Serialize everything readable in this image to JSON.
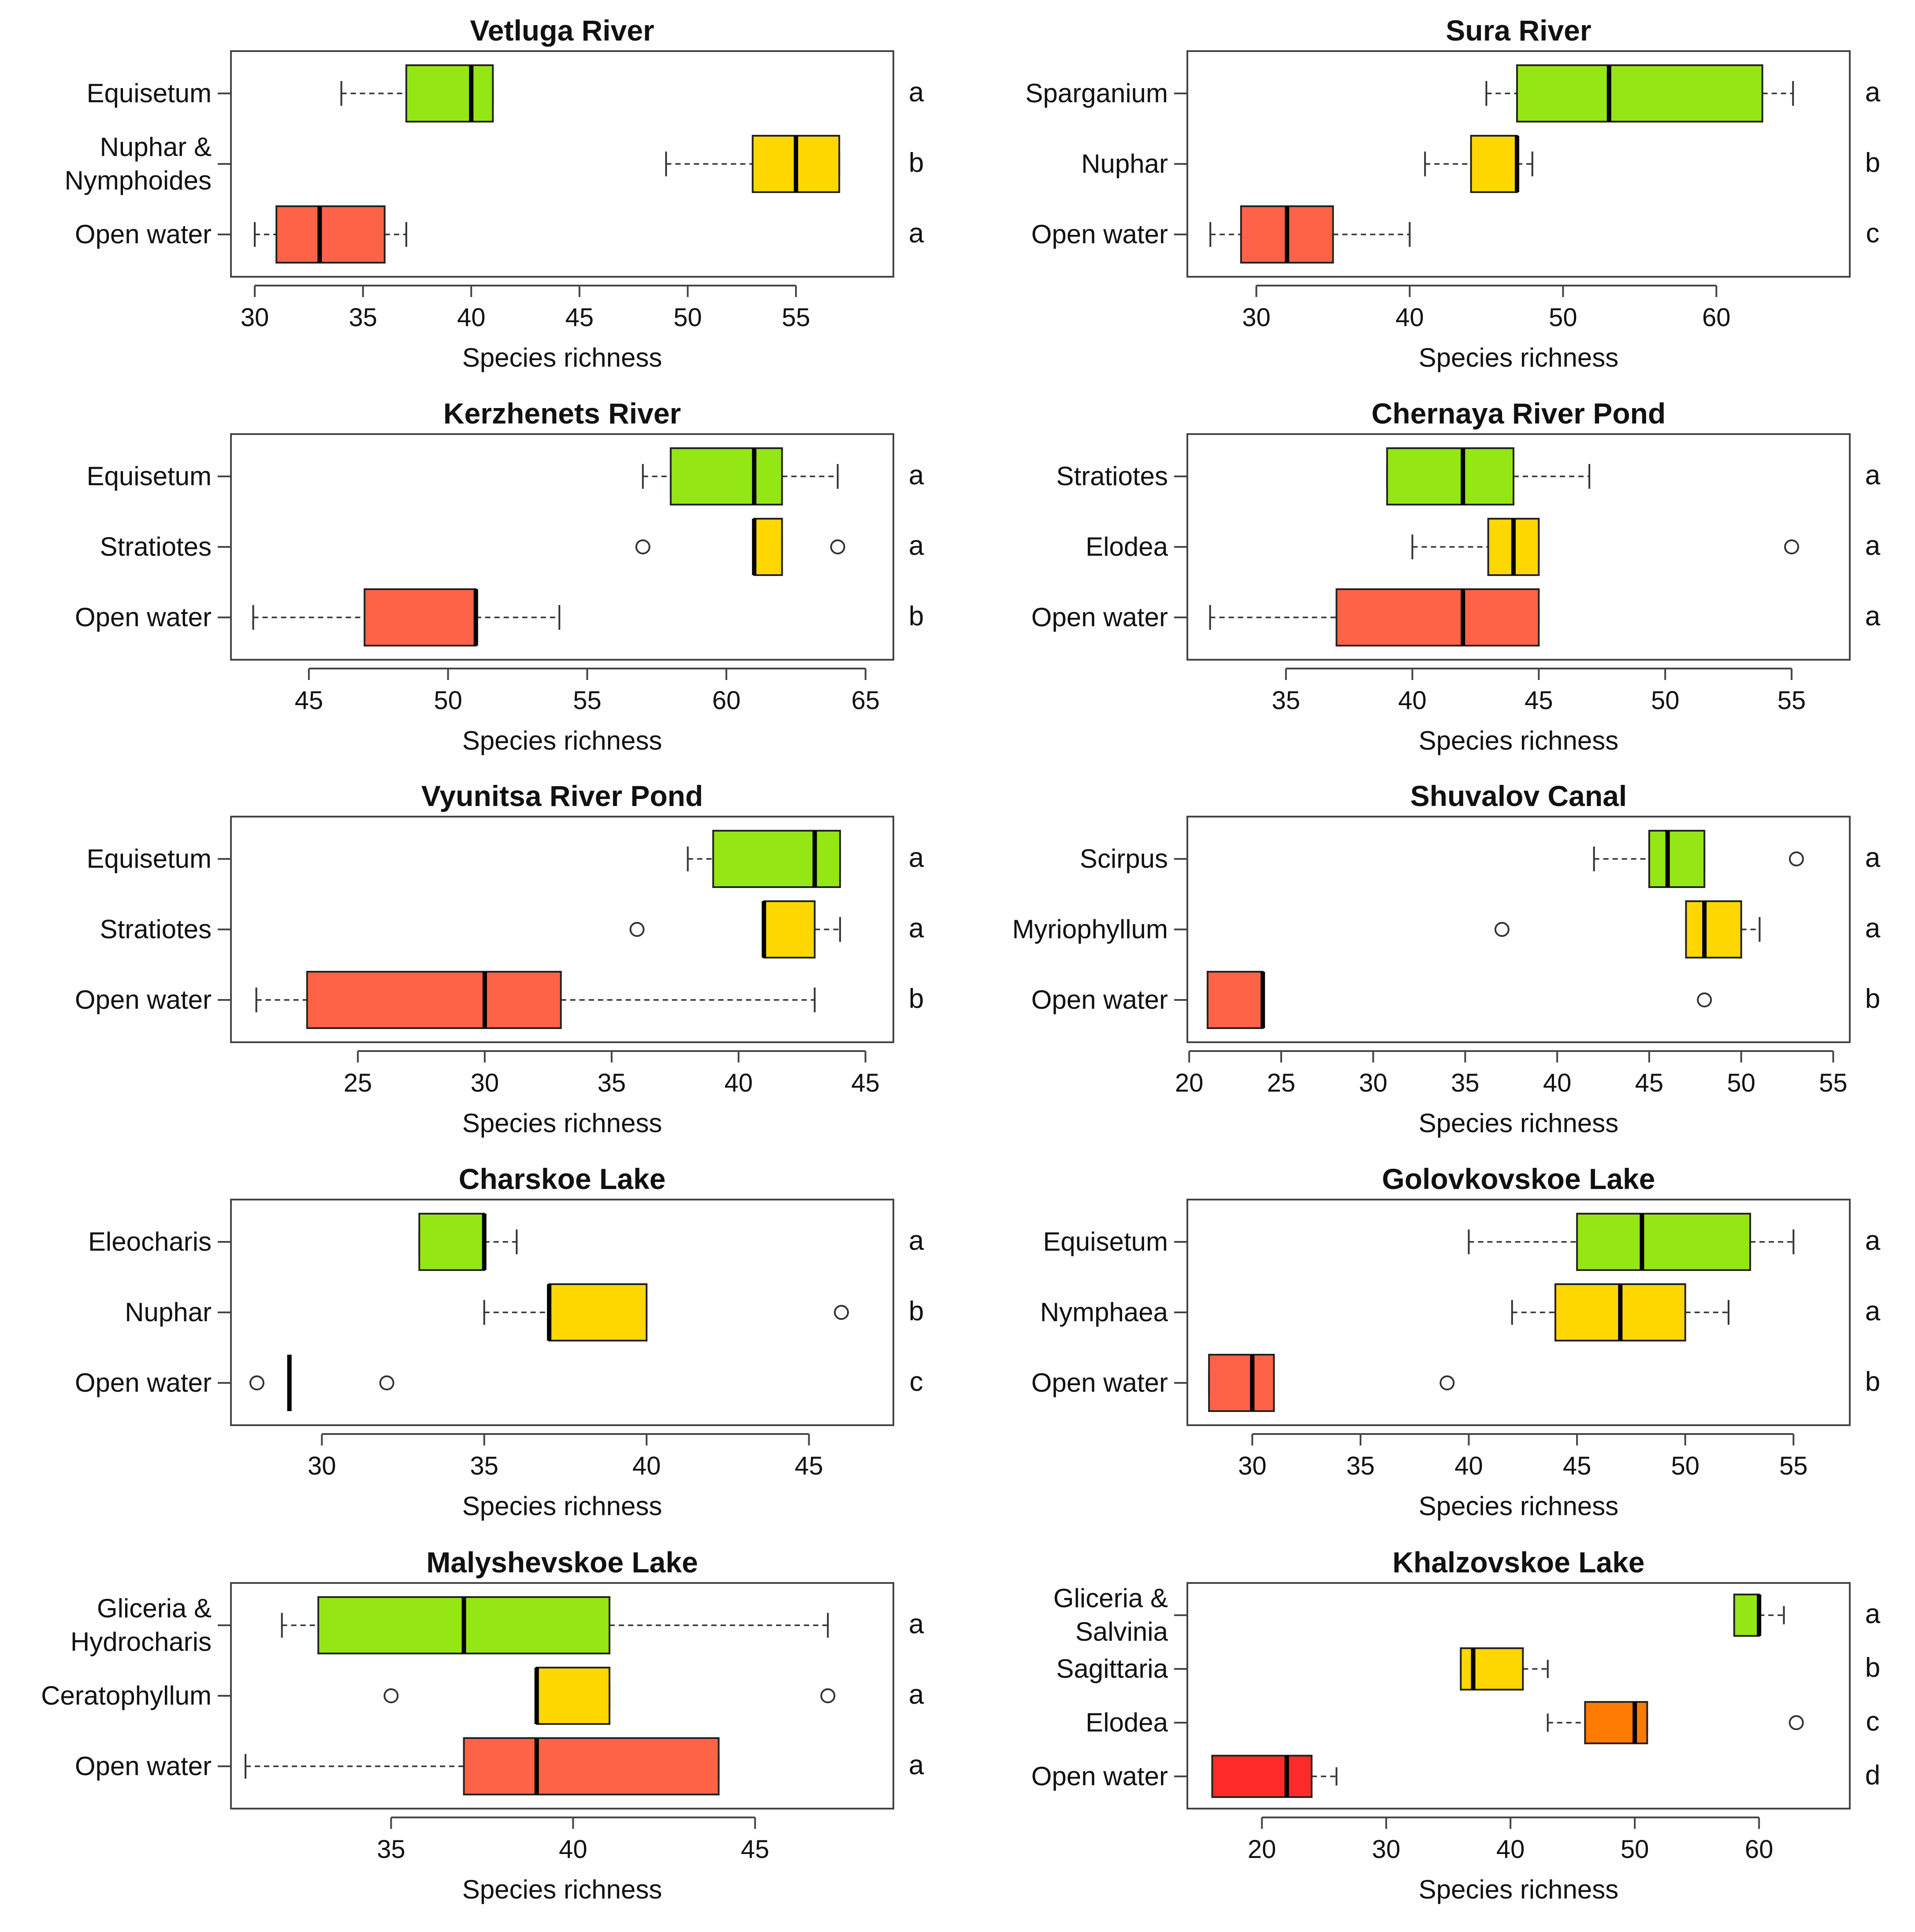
{
  "figure": {
    "xlabel_common": "Species richness",
    "colors": {
      "green": "#95e615",
      "yellow": "#ffd700",
      "red": "#ff6347",
      "orange": "#ff7a00",
      "bright_red": "#ff2a2a",
      "outline": "#222222"
    }
  },
  "chart_data": [
    {
      "type": "boxplot",
      "title": "Vetluga River",
      "xlabel": "Species richness",
      "xlim": [
        28.9,
        59.5
      ],
      "xticks": [
        30,
        35,
        40,
        45,
        50,
        55
      ],
      "groups": [
        {
          "label": [
            "Equisetum"
          ],
          "color": "green",
          "letter": "a",
          "whisker_low": 34,
          "q1": 37,
          "median": 40,
          "q3": 41,
          "whisker_high": 41,
          "outliers": []
        },
        {
          "label": [
            "Nuphar &",
            "Nymphoides"
          ],
          "color": "yellow",
          "letter": "b",
          "whisker_low": 49,
          "q1": 53,
          "median": 55,
          "q3": 57,
          "whisker_high": 57,
          "outliers": []
        },
        {
          "label": [
            "Open water"
          ],
          "color": "red",
          "letter": "a",
          "whisker_low": 30,
          "q1": 31,
          "median": 33,
          "q3": 36,
          "whisker_high": 37,
          "outliers": []
        }
      ]
    },
    {
      "type": "boxplot",
      "title": "Sura River",
      "xlabel": "Species richness",
      "xlim": [
        25.5,
        68.7
      ],
      "xticks": [
        30,
        40,
        50,
        60
      ],
      "groups": [
        {
          "label": [
            "Sparganium"
          ],
          "color": "green",
          "letter": "a",
          "whisker_low": 45,
          "q1": 47,
          "median": 53,
          "q3": 63,
          "whisker_high": 65,
          "outliers": []
        },
        {
          "label": [
            "Nuphar"
          ],
          "color": "yellow",
          "letter": "b",
          "whisker_low": 41,
          "q1": 44,
          "median": 47,
          "q3": 47,
          "whisker_high": 48,
          "outliers": []
        },
        {
          "label": [
            "Open water"
          ],
          "color": "red",
          "letter": "c",
          "whisker_low": 27,
          "q1": 29,
          "median": 32,
          "q3": 35,
          "whisker_high": 40,
          "outliers": []
        }
      ]
    },
    {
      "type": "boxplot",
      "title": "Kerzhenets River",
      "xlabel": "Species richness",
      "xlim": [
        42.2,
        66.0
      ],
      "xticks": [
        45,
        50,
        55,
        60,
        65
      ],
      "groups": [
        {
          "label": [
            "Equisetum"
          ],
          "color": "green",
          "letter": "a",
          "whisker_low": 57,
          "q1": 58,
          "median": 61,
          "q3": 62,
          "whisker_high": 64,
          "outliers": []
        },
        {
          "label": [
            "Stratiotes"
          ],
          "color": "yellow",
          "letter": "a",
          "whisker_low": 61,
          "q1": 61,
          "median": 61,
          "q3": 62,
          "whisker_high": 62,
          "outliers": [
            57,
            64
          ]
        },
        {
          "label": [
            "Open water"
          ],
          "color": "red",
          "letter": "b",
          "whisker_low": 43,
          "q1": 47,
          "median": 51,
          "q3": 51,
          "whisker_high": 54,
          "outliers": []
        }
      ]
    },
    {
      "type": "boxplot",
      "title": "Chernaya River Pond",
      "xlabel": "Species richness",
      "xlim": [
        31.1,
        57.3
      ],
      "xticks": [
        35,
        40,
        45,
        50,
        55
      ],
      "groups": [
        {
          "label": [
            "Stratiotes"
          ],
          "color": "green",
          "letter": "a",
          "whisker_low": 39,
          "q1": 39,
          "median": 42,
          "q3": 44,
          "whisker_high": 47,
          "outliers": []
        },
        {
          "label": [
            "Elodea"
          ],
          "color": "yellow",
          "letter": "a",
          "whisker_low": 40,
          "q1": 43,
          "median": 44,
          "q3": 45,
          "whisker_high": 45,
          "outliers": [
            55
          ]
        },
        {
          "label": [
            "Open water"
          ],
          "color": "red",
          "letter": "a",
          "whisker_low": 32,
          "q1": 37,
          "median": 42,
          "q3": 45,
          "whisker_high": 45,
          "outliers": []
        }
      ]
    },
    {
      "type": "boxplot",
      "title": "Vyunitsa River Pond",
      "xlabel": "Species richness",
      "xlim": [
        20.0,
        46.1
      ],
      "xticks": [
        25,
        30,
        35,
        40,
        45
      ],
      "groups": [
        {
          "label": [
            "Equisetum"
          ],
          "color": "green",
          "letter": "a",
          "whisker_low": 38,
          "q1": 39,
          "median": 43,
          "q3": 44,
          "whisker_high": 44,
          "outliers": []
        },
        {
          "label": [
            "Stratiotes"
          ],
          "color": "yellow",
          "letter": "a",
          "whisker_low": 41,
          "q1": 41,
          "median": 41,
          "q3": 43,
          "whisker_high": 44,
          "outliers": [
            36
          ]
        },
        {
          "label": [
            "Open water"
          ],
          "color": "red",
          "letter": "b",
          "whisker_low": 21,
          "q1": 23,
          "median": 30,
          "q3": 33,
          "whisker_high": 43,
          "outliers": []
        }
      ]
    },
    {
      "type": "boxplot",
      "title": "Shuvalov Canal",
      "xlabel": "Species richness",
      "xlim": [
        19.9,
        55.9
      ],
      "xticks": [
        20,
        25,
        30,
        35,
        40,
        45,
        50,
        55
      ],
      "groups": [
        {
          "label": [
            "Scirpus"
          ],
          "color": "green",
          "letter": "a",
          "whisker_low": 42,
          "q1": 45,
          "median": 46,
          "q3": 48,
          "whisker_high": 48,
          "outliers": [
            53
          ]
        },
        {
          "label": [
            "Myriophyllum"
          ],
          "color": "yellow",
          "letter": "a",
          "whisker_low": 47,
          "q1": 47,
          "median": 48,
          "q3": 50,
          "whisker_high": 51,
          "outliers": [
            37
          ]
        },
        {
          "label": [
            "Open water"
          ],
          "color": "red",
          "letter": "b",
          "whisker_low": 21,
          "q1": 21,
          "median": 24,
          "q3": 24,
          "whisker_high": 24,
          "outliers": [
            48
          ]
        }
      ]
    },
    {
      "type": "boxplot",
      "title": "Charskoe Lake",
      "xlabel": "Species richness",
      "xlim": [
        27.2,
        47.6
      ],
      "xticks": [
        30,
        35,
        40,
        45
      ],
      "groups": [
        {
          "label": [
            "Eleocharis"
          ],
          "color": "green",
          "letter": "a",
          "whisker_low": 33,
          "q1": 33,
          "median": 35,
          "q3": 35,
          "whisker_high": 36,
          "outliers": []
        },
        {
          "label": [
            "Nuphar"
          ],
          "color": "yellow",
          "letter": "b",
          "whisker_low": 35,
          "q1": 37,
          "median": 37,
          "q3": 40,
          "whisker_high": 40,
          "outliers": [
            46
          ]
        },
        {
          "label": [
            "Open water"
          ],
          "color": "red",
          "letter": "c",
          "whisker_low": 29,
          "q1": 29,
          "median": 29,
          "q3": 29,
          "whisker_high": 29,
          "outliers": [
            28,
            32
          ]
        }
      ]
    },
    {
      "type": "boxplot",
      "title": "Golovkovskoe Lake",
      "xlabel": "Species richness",
      "xlim": [
        27.0,
        57.6
      ],
      "xticks": [
        30,
        35,
        40,
        45,
        50,
        55
      ],
      "groups": [
        {
          "label": [
            "Equisetum"
          ],
          "color": "green",
          "letter": "a",
          "whisker_low": 40,
          "q1": 45,
          "median": 48,
          "q3": 53,
          "whisker_high": 55,
          "outliers": []
        },
        {
          "label": [
            "Nymphaea"
          ],
          "color": "yellow",
          "letter": "a",
          "whisker_low": 42,
          "q1": 44,
          "median": 47,
          "q3": 50,
          "whisker_high": 52,
          "outliers": []
        },
        {
          "label": [
            "Open water"
          ],
          "color": "red",
          "letter": "b",
          "whisker_low": 28,
          "q1": 28,
          "median": 30,
          "q3": 31,
          "whisker_high": 31,
          "outliers": [
            39
          ]
        }
      ]
    },
    {
      "type": "boxplot",
      "title": "Malyshevskoe Lake",
      "xlabel": "Species richness",
      "xlim": [
        30.6,
        48.8
      ],
      "xticks": [
        35,
        40,
        45
      ],
      "groups": [
        {
          "label": [
            "Gliceria &",
            "Hydrocharis"
          ],
          "color": "green",
          "letter": "a",
          "whisker_low": 32,
          "q1": 33,
          "median": 37,
          "q3": 41,
          "whisker_high": 47,
          "outliers": []
        },
        {
          "label": [
            "Ceratophyllum"
          ],
          "color": "yellow",
          "letter": "a",
          "whisker_low": 39,
          "q1": 39,
          "median": 39,
          "q3": 41,
          "whisker_high": 41,
          "outliers": [
            35,
            47
          ]
        },
        {
          "label": [
            "Open water"
          ],
          "color": "red",
          "letter": "a",
          "whisker_low": 31,
          "q1": 37,
          "median": 39,
          "q3": 44,
          "whisker_high": 44,
          "outliers": []
        }
      ]
    },
    {
      "type": "boxplot",
      "title": "Khalzovskoe Lake",
      "xlabel": "Species richness",
      "xlim": [
        14.0,
        67.3
      ],
      "xticks": [
        20,
        30,
        40,
        50,
        60
      ],
      "groups": [
        {
          "label": [
            "Gliceria &",
            "Salvinia"
          ],
          "color": "green",
          "letter": "a",
          "whisker_low": 58,
          "q1": 58,
          "median": 60,
          "q3": 60,
          "whisker_high": 62,
          "outliers": []
        },
        {
          "label": [
            "Sagittaria"
          ],
          "color": "yellow",
          "letter": "b",
          "whisker_low": 36,
          "q1": 36,
          "median": 37,
          "q3": 41,
          "whisker_high": 43,
          "outliers": []
        },
        {
          "label": [
            "Elodea"
          ],
          "color": "orange",
          "letter": "c",
          "whisker_low": 43,
          "q1": 46,
          "median": 50,
          "q3": 51,
          "whisker_high": 51,
          "outliers": [
            63
          ]
        },
        {
          "label": [
            "Open water"
          ],
          "color": "bright_red",
          "letter": "d",
          "whisker_low": 16,
          "q1": 16,
          "median": 22,
          "q3": 24,
          "whisker_high": 26,
          "outliers": []
        }
      ]
    }
  ]
}
